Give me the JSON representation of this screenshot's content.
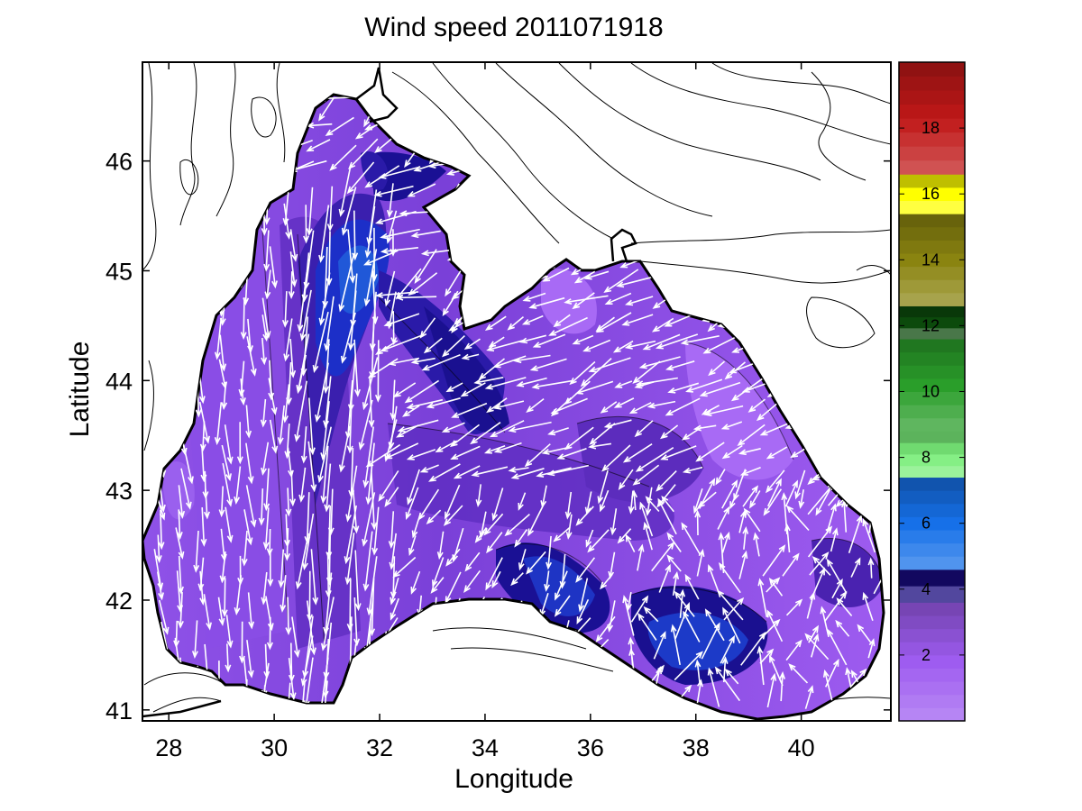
{
  "chart_data": {
    "type": "heatmap",
    "title": "Wind speed 2011071918",
    "xlabel": "Longitude",
    "ylabel": "Latitude",
    "xlim": [
      27.5,
      41.7
    ],
    "ylim": [
      40.9,
      46.9
    ],
    "xticks": [
      28,
      30,
      32,
      34,
      36,
      38,
      40
    ],
    "yticks": [
      41,
      42,
      43,
      44,
      45,
      46
    ],
    "colorbar": {
      "range": [
        0,
        20
      ],
      "ticks": [
        2,
        4,
        6,
        8,
        10,
        12,
        14,
        16,
        18
      ],
      "bands": [
        {
          "from": 0,
          "to": 3.6,
          "color": "#9e5cf0"
        },
        {
          "from": 3.6,
          "to": 4.6,
          "color": "#180a7e"
        },
        {
          "from": 4.6,
          "to": 7.4,
          "color": "#1670e8"
        },
        {
          "from": 7.4,
          "to": 8.8,
          "color": "#7aee7a"
        },
        {
          "from": 8.8,
          "to": 11.6,
          "color": "#2a9e2a"
        },
        {
          "from": 11.6,
          "to": 12.6,
          "color": "#0c4a0c"
        },
        {
          "from": 12.6,
          "to": 15.4,
          "color": "#8a8410"
        },
        {
          "from": 15.4,
          "to": 16.6,
          "color": "#ffff00"
        },
        {
          "from": 16.6,
          "to": 20,
          "color": "#c01818"
        }
      ]
    },
    "grid": false,
    "colorbar_placement": "right",
    "background_color": "#ffffff",
    "land_color": "#ffffff",
    "arrow_color": "#ffffff"
  }
}
